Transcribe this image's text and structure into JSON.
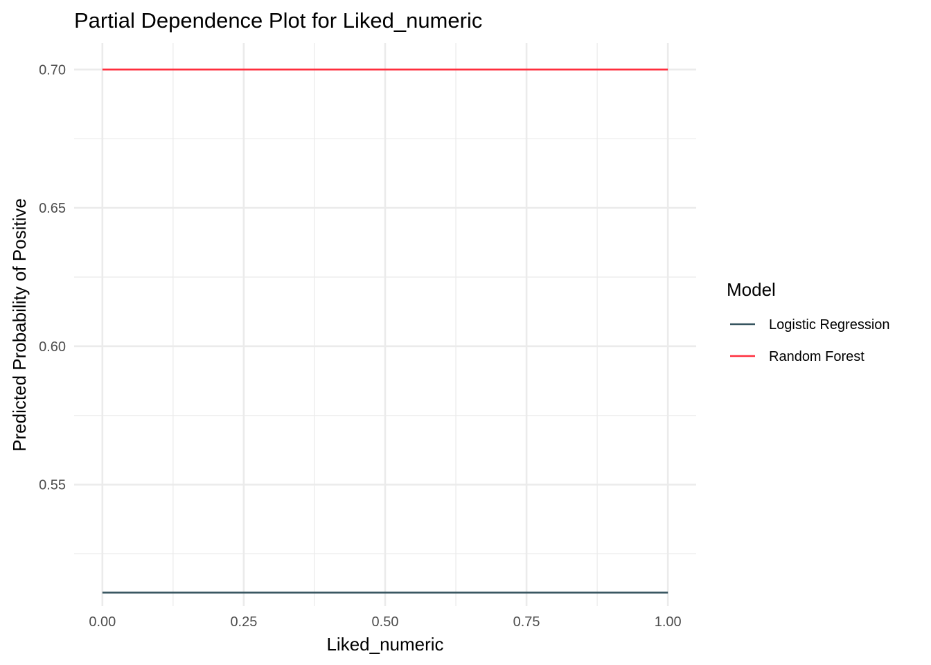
{
  "chart_data": {
    "type": "line",
    "title": "Partial Dependence Plot for Liked_numeric",
    "xlabel": "Liked_numeric",
    "ylabel": "Predicted Probability of Positive",
    "xlim": [
      -0.05,
      1.05
    ],
    "ylim": [
      0.5061,
      0.7096
    ],
    "x_ticks": [
      0.0,
      0.25,
      0.5,
      0.75,
      1.0
    ],
    "x_tick_labels": [
      "0.00",
      "0.25",
      "0.50",
      "0.75",
      "1.00"
    ],
    "y_ticks": [
      0.55,
      0.6,
      0.65,
      0.7
    ],
    "y_tick_labels": [
      "0.55",
      "0.60",
      "0.65",
      "0.70"
    ],
    "grid": true,
    "legend": {
      "title": "Model",
      "placement": "right"
    },
    "series": [
      {
        "name": "Logistic Regression",
        "color": "#36545F",
        "x": [
          0.0,
          1.0
        ],
        "y": [
          0.511,
          0.511
        ]
      },
      {
        "name": "Random Forest",
        "color": "#FF2E3D",
        "x": [
          0.0,
          1.0
        ],
        "y": [
          0.7,
          0.7
        ]
      }
    ]
  }
}
